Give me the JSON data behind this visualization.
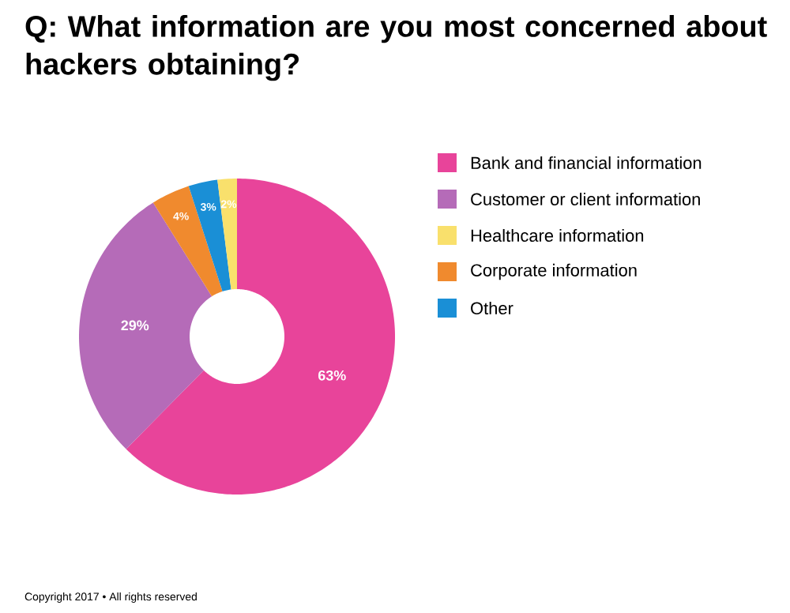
{
  "chart_data": {
    "type": "donut",
    "title": "Q: What information are you most concerned about hackers obtaining?",
    "categories": [
      "Bank and financial information",
      "Customer or client information",
      "Healthcare information",
      "Corporate information",
      "Other"
    ],
    "values": [
      63,
      29,
      2,
      4,
      3
    ],
    "value_labels": [
      "63%",
      "29%",
      "2%",
      "4%",
      "3%"
    ],
    "colors": [
      "#e8449a",
      "#b56bb8",
      "#f9e06c",
      "#f08a2e",
      "#1a8fd6"
    ],
    "legend": "right",
    "annotations": [
      "Copyright 2017 • All rights reserved"
    ]
  }
}
